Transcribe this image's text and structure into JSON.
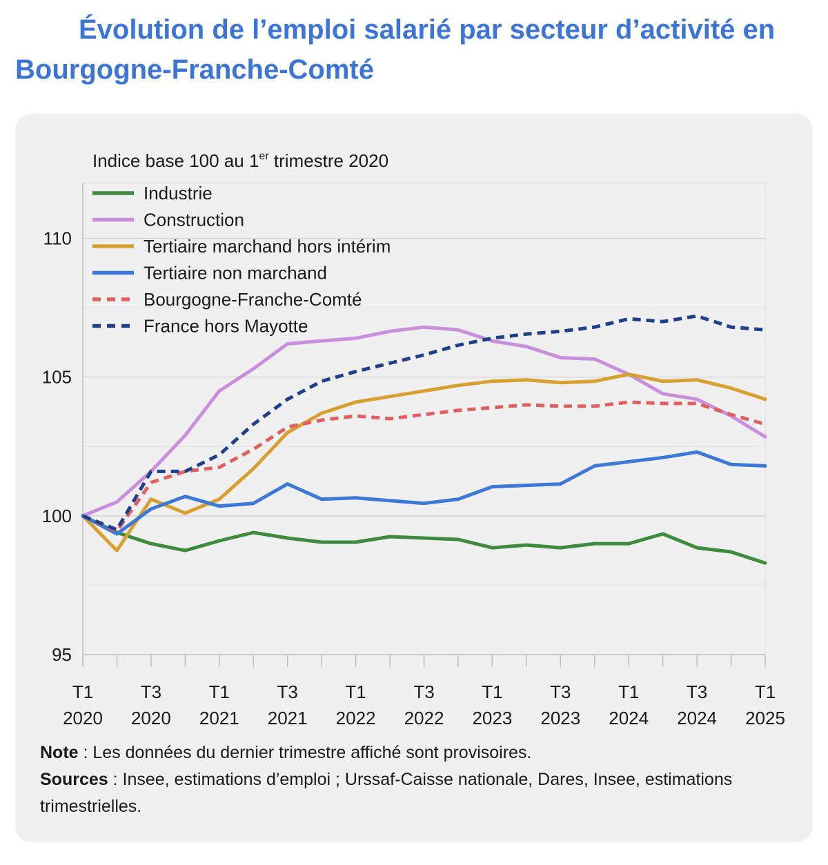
{
  "title": "Évolution de l’emploi salarié par secteur d’activité en Bourgogne-Franche-Comté",
  "notes": {
    "note_label": "Note",
    "note_text": " : Les données du dernier trimestre affiché sont provisoires.",
    "sources_label": "Sources",
    "sources_text": " : Insee, estimations d’emploi ; Urssaf-Caisse nationale, Dares, Insee, estimations trimestrielles."
  },
  "chart_data": {
    "type": "line",
    "subtitle_main": "Indice base 100 au 1",
    "subtitle_sup": "er",
    "subtitle_end": " trimestre 2020",
    "ylim": [
      95,
      112
    ],
    "yticks": [
      "95",
      "100",
      "105",
      "110"
    ],
    "grid": true,
    "legend_position": "top-left",
    "x": [
      "T1 2020",
      "T2 2020",
      "T3 2020",
      "T4 2020",
      "T1 2021",
      "T2 2021",
      "T3 2021",
      "T4 2021",
      "T1 2022",
      "T2 2022",
      "T3 2022",
      "T4 2022",
      "T1 2023",
      "T2 2023",
      "T3 2023",
      "T4 2023",
      "T1 2024",
      "T2 2024",
      "T3 2024",
      "T4 2024",
      "T1 2025"
    ],
    "xtick_labels": [
      {
        "index": 0,
        "line1": "T1",
        "line2": "2020"
      },
      {
        "index": 2,
        "line1": "T3",
        "line2": "2020"
      },
      {
        "index": 4,
        "line1": "T1",
        "line2": "2021"
      },
      {
        "index": 6,
        "line1": "T3",
        "line2": "2021"
      },
      {
        "index": 8,
        "line1": "T1",
        "line2": "2022"
      },
      {
        "index": 10,
        "line1": "T3",
        "line2": "2022"
      },
      {
        "index": 12,
        "line1": "T1",
        "line2": "2023"
      },
      {
        "index": 14,
        "line1": "T3",
        "line2": "2023"
      },
      {
        "index": 16,
        "line1": "T1",
        "line2": "2024"
      },
      {
        "index": 18,
        "line1": "T3",
        "line2": "2024"
      },
      {
        "index": 20,
        "line1": "T1",
        "line2": "2025"
      }
    ],
    "series": [
      {
        "name": "Industrie",
        "color": "#3e8a3e",
        "dashed": false,
        "values": [
          100,
          99.4,
          99.0,
          98.75,
          99.1,
          99.4,
          99.2,
          99.05,
          99.05,
          99.25,
          99.2,
          99.15,
          98.85,
          98.95,
          98.85,
          99.0,
          99.0,
          99.35,
          98.85,
          98.7,
          98.3
        ]
      },
      {
        "name": "Construction",
        "color": "#c98fdc",
        "dashed": false,
        "values": [
          100,
          100.5,
          101.6,
          102.9,
          104.5,
          105.3,
          106.2,
          106.3,
          106.4,
          106.65,
          106.8,
          106.7,
          106.3,
          106.1,
          105.7,
          105.65,
          105.1,
          104.4,
          104.2,
          103.6,
          102.85
        ]
      },
      {
        "name": "Tertiaire marchand hors intérim",
        "color": "#d8a031",
        "dashed": false,
        "values": [
          100,
          98.75,
          100.6,
          100.1,
          100.6,
          101.7,
          103.0,
          103.7,
          104.1,
          104.3,
          104.5,
          104.7,
          104.85,
          104.9,
          104.8,
          104.85,
          105.1,
          104.85,
          104.9,
          104.6,
          104.2
        ]
      },
      {
        "name": "Tertiaire non marchand",
        "color": "#3c78d8",
        "dashed": false,
        "values": [
          100,
          99.35,
          100.25,
          100.7,
          100.35,
          100.45,
          101.15,
          100.6,
          100.65,
          100.55,
          100.45,
          100.6,
          101.05,
          101.1,
          101.15,
          101.8,
          101.95,
          102.1,
          102.3,
          101.85,
          101.8
        ]
      },
      {
        "name": "Bourgogne-Franche-Comté",
        "color": "#e06060",
        "dashed": true,
        "values": [
          100,
          99.45,
          101.2,
          101.6,
          101.75,
          102.4,
          103.2,
          103.45,
          103.6,
          103.5,
          103.65,
          103.8,
          103.9,
          104.0,
          103.95,
          103.95,
          104.1,
          104.05,
          104.05,
          103.65,
          103.3
        ]
      },
      {
        "name": "France hors Mayotte",
        "color": "#1e3f8a",
        "dashed": true,
        "values": [
          100,
          99.5,
          101.6,
          101.6,
          102.2,
          103.3,
          104.2,
          104.85,
          105.2,
          105.5,
          105.8,
          106.15,
          106.4,
          106.55,
          106.65,
          106.8,
          107.1,
          107.0,
          107.2,
          106.8,
          106.7
        ]
      }
    ]
  }
}
